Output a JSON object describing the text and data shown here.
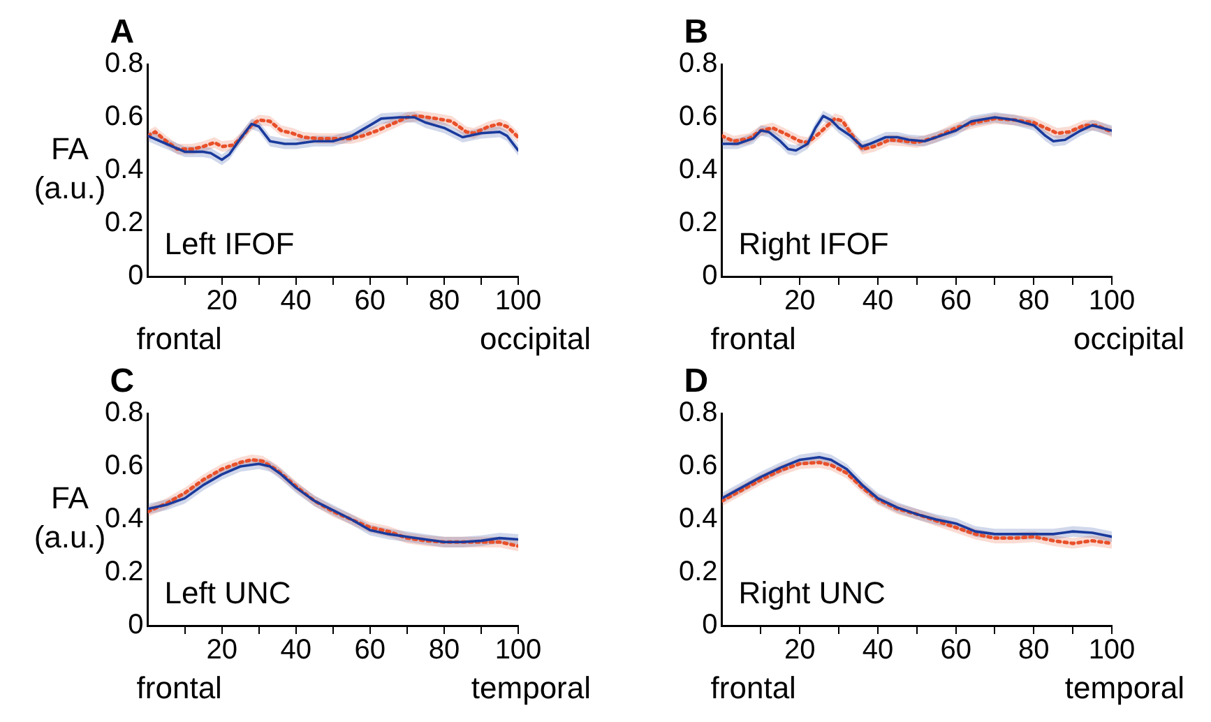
{
  "chart_data": [
    {
      "type": "line",
      "title": "A",
      "ylabel": "FA (a.u.)",
      "annotations": [
        "Left IFOF",
        "frontal",
        "occipital"
      ],
      "xlim": [
        0,
        100
      ],
      "ylim": [
        0,
        0.8
      ],
      "xticks": [
        {
          "value": 10,
          "label": null
        },
        20,
        {
          "value": 30,
          "label": null
        },
        40,
        {
          "value": 50,
          "label": null
        },
        60,
        {
          "value": 70,
          "label": null
        },
        80,
        {
          "value": 90,
          "label": null
        },
        100
      ],
      "yticks": [
        0,
        0.2,
        0.4,
        0.6,
        0.8
      ],
      "marker": "none",
      "series": [
        {
          "color": "#1a3a9c",
          "line_style": "solid",
          "x": [
            0,
            5,
            10,
            15,
            17,
            20,
            22,
            25,
            28,
            30,
            33,
            37,
            40,
            45,
            50,
            55,
            60,
            63,
            68,
            72,
            75,
            80,
            85,
            90,
            95,
            97,
            100
          ],
          "values": [
            0.53,
            0.5,
            0.47,
            0.47,
            0.465,
            0.44,
            0.46,
            0.52,
            0.575,
            0.565,
            0.51,
            0.5,
            0.5,
            0.51,
            0.51,
            0.53,
            0.57,
            0.595,
            0.6,
            0.6,
            0.58,
            0.56,
            0.525,
            0.54,
            0.545,
            0.53,
            0.475
          ],
          "lower": [
            0.51,
            0.48,
            0.45,
            0.45,
            0.445,
            0.42,
            0.44,
            0.5,
            0.555,
            0.545,
            0.49,
            0.48,
            0.48,
            0.49,
            0.49,
            0.51,
            0.55,
            0.575,
            0.58,
            0.58,
            0.56,
            0.54,
            0.505,
            0.52,
            0.525,
            0.51,
            0.455
          ],
          "upper": [
            0.55,
            0.52,
            0.49,
            0.49,
            0.485,
            0.46,
            0.48,
            0.54,
            0.595,
            0.585,
            0.53,
            0.52,
            0.52,
            0.53,
            0.53,
            0.55,
            0.59,
            0.615,
            0.62,
            0.62,
            0.6,
            0.58,
            0.545,
            0.56,
            0.565,
            0.55,
            0.495
          ]
        },
        {
          "color": "#e8502a",
          "line_style": "dotted",
          "x": [
            0,
            2,
            5,
            8,
            12,
            15,
            18,
            20,
            23,
            25,
            28,
            30,
            33,
            36,
            39,
            42,
            46,
            50,
            55,
            58,
            62,
            66,
            70,
            73,
            78,
            82,
            86,
            88,
            92,
            95,
            97,
            100
          ],
          "values": [
            0.53,
            0.545,
            0.51,
            0.48,
            0.48,
            0.49,
            0.505,
            0.49,
            0.495,
            0.52,
            0.57,
            0.59,
            0.585,
            0.55,
            0.54,
            0.525,
            0.52,
            0.52,
            0.52,
            0.53,
            0.55,
            0.575,
            0.6,
            0.605,
            0.595,
            0.585,
            0.545,
            0.54,
            0.565,
            0.575,
            0.565,
            0.525
          ],
          "lower": [
            0.51,
            0.525,
            0.49,
            0.46,
            0.46,
            0.47,
            0.485,
            0.47,
            0.475,
            0.5,
            0.55,
            0.57,
            0.565,
            0.53,
            0.52,
            0.505,
            0.5,
            0.5,
            0.5,
            0.51,
            0.53,
            0.555,
            0.58,
            0.585,
            0.575,
            0.565,
            0.525,
            0.52,
            0.545,
            0.555,
            0.545,
            0.505
          ],
          "upper": [
            0.55,
            0.565,
            0.53,
            0.5,
            0.5,
            0.51,
            0.525,
            0.51,
            0.515,
            0.54,
            0.59,
            0.61,
            0.605,
            0.57,
            0.56,
            0.545,
            0.54,
            0.54,
            0.54,
            0.55,
            0.57,
            0.595,
            0.62,
            0.625,
            0.615,
            0.605,
            0.565,
            0.56,
            0.585,
            0.595,
            0.585,
            0.545
          ]
        }
      ]
    },
    {
      "type": "line",
      "title": "B",
      "annotations": [
        "Right IFOF",
        "frontal",
        "occipital"
      ],
      "xlim": [
        0,
        100
      ],
      "ylim": [
        0,
        0.8
      ],
      "xticks": [
        {
          "value": 10,
          "label": null
        },
        20,
        {
          "value": 30,
          "label": null
        },
        40,
        {
          "value": 50,
          "label": null
        },
        60,
        {
          "value": 70,
          "label": null
        },
        80,
        {
          "value": 90,
          "label": null
        },
        100
      ],
      "yticks": [
        0,
        0.2,
        0.4,
        0.6,
        0.8
      ],
      "marker": "none",
      "series": [
        {
          "color": "#1a3a9c",
          "line_style": "solid",
          "x": [
            0,
            4,
            8,
            10,
            12,
            15,
            17,
            19,
            22,
            24,
            26,
            28,
            30,
            33,
            36,
            38,
            42,
            45,
            48,
            52,
            56,
            60,
            64,
            70,
            75,
            80,
            83,
            85,
            88,
            92,
            95,
            100
          ],
          "values": [
            0.5,
            0.5,
            0.52,
            0.55,
            0.545,
            0.51,
            0.48,
            0.475,
            0.5,
            0.56,
            0.605,
            0.59,
            0.56,
            0.53,
            0.49,
            0.5,
            0.525,
            0.525,
            0.515,
            0.51,
            0.53,
            0.55,
            0.585,
            0.6,
            0.59,
            0.57,
            0.53,
            0.51,
            0.515,
            0.55,
            0.57,
            0.55
          ],
          "lower": [
            0.48,
            0.48,
            0.5,
            0.53,
            0.525,
            0.49,
            0.46,
            0.455,
            0.48,
            0.54,
            0.585,
            0.57,
            0.54,
            0.51,
            0.47,
            0.48,
            0.505,
            0.505,
            0.495,
            0.49,
            0.51,
            0.53,
            0.565,
            0.58,
            0.57,
            0.55,
            0.51,
            0.49,
            0.495,
            0.53,
            0.55,
            0.53
          ],
          "upper": [
            0.52,
            0.52,
            0.54,
            0.57,
            0.565,
            0.53,
            0.5,
            0.495,
            0.52,
            0.58,
            0.625,
            0.61,
            0.58,
            0.55,
            0.51,
            0.52,
            0.545,
            0.545,
            0.535,
            0.53,
            0.55,
            0.57,
            0.605,
            0.62,
            0.61,
            0.59,
            0.55,
            0.53,
            0.535,
            0.57,
            0.59,
            0.57
          ]
        },
        {
          "color": "#e8502a",
          "line_style": "dotted",
          "x": [
            0,
            3,
            7,
            10,
            13,
            16,
            20,
            22,
            25,
            29,
            31,
            34,
            36,
            39,
            43,
            47,
            50,
            55,
            60,
            65,
            70,
            75,
            80,
            83,
            86,
            89,
            93,
            96,
            100
          ],
          "values": [
            0.53,
            0.51,
            0.52,
            0.55,
            0.56,
            0.54,
            0.51,
            0.505,
            0.54,
            0.595,
            0.585,
            0.52,
            0.48,
            0.49,
            0.515,
            0.51,
            0.505,
            0.525,
            0.56,
            0.58,
            0.595,
            0.59,
            0.58,
            0.56,
            0.54,
            0.545,
            0.57,
            0.57,
            0.545
          ],
          "lower": [
            0.51,
            0.49,
            0.5,
            0.53,
            0.54,
            0.52,
            0.49,
            0.485,
            0.52,
            0.575,
            0.565,
            0.5,
            0.46,
            0.47,
            0.495,
            0.49,
            0.485,
            0.505,
            0.54,
            0.56,
            0.575,
            0.57,
            0.56,
            0.54,
            0.52,
            0.525,
            0.55,
            0.55,
            0.525
          ],
          "upper": [
            0.55,
            0.53,
            0.54,
            0.57,
            0.58,
            0.56,
            0.53,
            0.525,
            0.56,
            0.615,
            0.605,
            0.54,
            0.5,
            0.51,
            0.535,
            0.53,
            0.525,
            0.545,
            0.58,
            0.6,
            0.615,
            0.61,
            0.6,
            0.58,
            0.56,
            0.565,
            0.59,
            0.59,
            0.565
          ]
        }
      ]
    },
    {
      "type": "line",
      "title": "C",
      "ylabel": "FA (a.u.)",
      "annotations": [
        "Left UNC",
        "frontal",
        "temporal"
      ],
      "xlim": [
        0,
        100
      ],
      "ylim": [
        0,
        0.8
      ],
      "xticks": [
        {
          "value": 10,
          "label": null
        },
        20,
        {
          "value": 30,
          "label": null
        },
        40,
        {
          "value": 50,
          "label": null
        },
        60,
        {
          "value": 70,
          "label": null
        },
        80,
        {
          "value": 90,
          "label": null
        },
        100
      ],
      "yticks": [
        0,
        0.2,
        0.4,
        0.6,
        0.8
      ],
      "marker": "none",
      "series": [
        {
          "color": "#1a3a9c",
          "line_style": "solid",
          "x": [
            0,
            5,
            10,
            15,
            20,
            25,
            30,
            33,
            36,
            40,
            45,
            50,
            55,
            60,
            65,
            70,
            75,
            80,
            85,
            90,
            95,
            100
          ],
          "values": [
            0.44,
            0.455,
            0.48,
            0.53,
            0.57,
            0.6,
            0.61,
            0.6,
            0.57,
            0.52,
            0.47,
            0.435,
            0.4,
            0.36,
            0.345,
            0.335,
            0.325,
            0.315,
            0.315,
            0.32,
            0.33,
            0.325
          ],
          "lower": [
            0.42,
            0.435,
            0.46,
            0.51,
            0.55,
            0.58,
            0.59,
            0.58,
            0.55,
            0.5,
            0.45,
            0.415,
            0.38,
            0.34,
            0.325,
            0.315,
            0.305,
            0.295,
            0.295,
            0.3,
            0.31,
            0.305
          ],
          "upper": [
            0.46,
            0.475,
            0.5,
            0.55,
            0.59,
            0.62,
            0.63,
            0.62,
            0.59,
            0.54,
            0.49,
            0.455,
            0.42,
            0.38,
            0.365,
            0.355,
            0.345,
            0.335,
            0.335,
            0.34,
            0.35,
            0.345
          ]
        },
        {
          "color": "#e8502a",
          "line_style": "dotted",
          "x": [
            0,
            5,
            10,
            15,
            20,
            25,
            28,
            31,
            35,
            40,
            45,
            50,
            55,
            60,
            65,
            70,
            75,
            80,
            85,
            90,
            95,
            100
          ],
          "values": [
            0.43,
            0.46,
            0.5,
            0.55,
            0.59,
            0.615,
            0.625,
            0.62,
            0.585,
            0.525,
            0.47,
            0.43,
            0.4,
            0.37,
            0.355,
            0.33,
            0.32,
            0.315,
            0.315,
            0.315,
            0.315,
            0.3
          ],
          "lower": [
            0.41,
            0.44,
            0.48,
            0.53,
            0.57,
            0.595,
            0.605,
            0.6,
            0.565,
            0.505,
            0.45,
            0.41,
            0.38,
            0.35,
            0.335,
            0.31,
            0.3,
            0.295,
            0.295,
            0.295,
            0.295,
            0.28
          ],
          "upper": [
            0.45,
            0.48,
            0.52,
            0.57,
            0.61,
            0.635,
            0.645,
            0.64,
            0.605,
            0.545,
            0.49,
            0.45,
            0.42,
            0.39,
            0.375,
            0.35,
            0.34,
            0.335,
            0.335,
            0.335,
            0.335,
            0.32
          ]
        }
      ]
    },
    {
      "type": "line",
      "title": "D",
      "annotations": [
        "Right UNC",
        "frontal",
        "temporal"
      ],
      "xlim": [
        0,
        100
      ],
      "ylim": [
        0,
        0.8
      ],
      "xticks": [
        {
          "value": 10,
          "label": null
        },
        20,
        {
          "value": 30,
          "label": null
        },
        40,
        {
          "value": 50,
          "label": null
        },
        60,
        {
          "value": 70,
          "label": null
        },
        80,
        {
          "value": 90,
          "label": null
        },
        100
      ],
      "yticks": [
        0,
        0.2,
        0.4,
        0.6,
        0.8
      ],
      "marker": "none",
      "series": [
        {
          "color": "#1a3a9c",
          "line_style": "solid",
          "x": [
            0,
            5,
            10,
            15,
            20,
            25,
            28,
            32,
            36,
            40,
            45,
            50,
            55,
            60,
            65,
            70,
            75,
            80,
            85,
            90,
            95,
            100
          ],
          "values": [
            0.48,
            0.52,
            0.56,
            0.595,
            0.625,
            0.635,
            0.625,
            0.59,
            0.53,
            0.48,
            0.445,
            0.42,
            0.4,
            0.385,
            0.355,
            0.345,
            0.345,
            0.345,
            0.345,
            0.355,
            0.35,
            0.335
          ],
          "lower": [
            0.46,
            0.5,
            0.54,
            0.575,
            0.605,
            0.615,
            0.605,
            0.57,
            0.51,
            0.46,
            0.425,
            0.4,
            0.38,
            0.365,
            0.335,
            0.325,
            0.325,
            0.325,
            0.325,
            0.335,
            0.33,
            0.315
          ],
          "upper": [
            0.5,
            0.54,
            0.58,
            0.615,
            0.645,
            0.655,
            0.645,
            0.61,
            0.55,
            0.5,
            0.465,
            0.44,
            0.42,
            0.405,
            0.375,
            0.365,
            0.365,
            0.365,
            0.365,
            0.375,
            0.37,
            0.355
          ]
        },
        {
          "color": "#e8502a",
          "line_style": "dotted",
          "x": [
            0,
            5,
            10,
            15,
            20,
            25,
            28,
            32,
            36,
            40,
            45,
            50,
            55,
            60,
            65,
            70,
            75,
            80,
            85,
            90,
            95,
            100
          ],
          "values": [
            0.47,
            0.51,
            0.55,
            0.585,
            0.61,
            0.615,
            0.605,
            0.575,
            0.52,
            0.475,
            0.44,
            0.42,
            0.395,
            0.37,
            0.345,
            0.33,
            0.33,
            0.335,
            0.32,
            0.31,
            0.32,
            0.31
          ],
          "lower": [
            0.45,
            0.49,
            0.53,
            0.565,
            0.59,
            0.595,
            0.585,
            0.555,
            0.5,
            0.455,
            0.42,
            0.4,
            0.375,
            0.35,
            0.325,
            0.31,
            0.31,
            0.315,
            0.3,
            0.29,
            0.3,
            0.29
          ],
          "upper": [
            0.49,
            0.53,
            0.57,
            0.605,
            0.63,
            0.635,
            0.625,
            0.595,
            0.54,
            0.495,
            0.46,
            0.44,
            0.415,
            0.39,
            0.365,
            0.35,
            0.35,
            0.355,
            0.34,
            0.33,
            0.34,
            0.33
          ]
        }
      ]
    }
  ]
}
